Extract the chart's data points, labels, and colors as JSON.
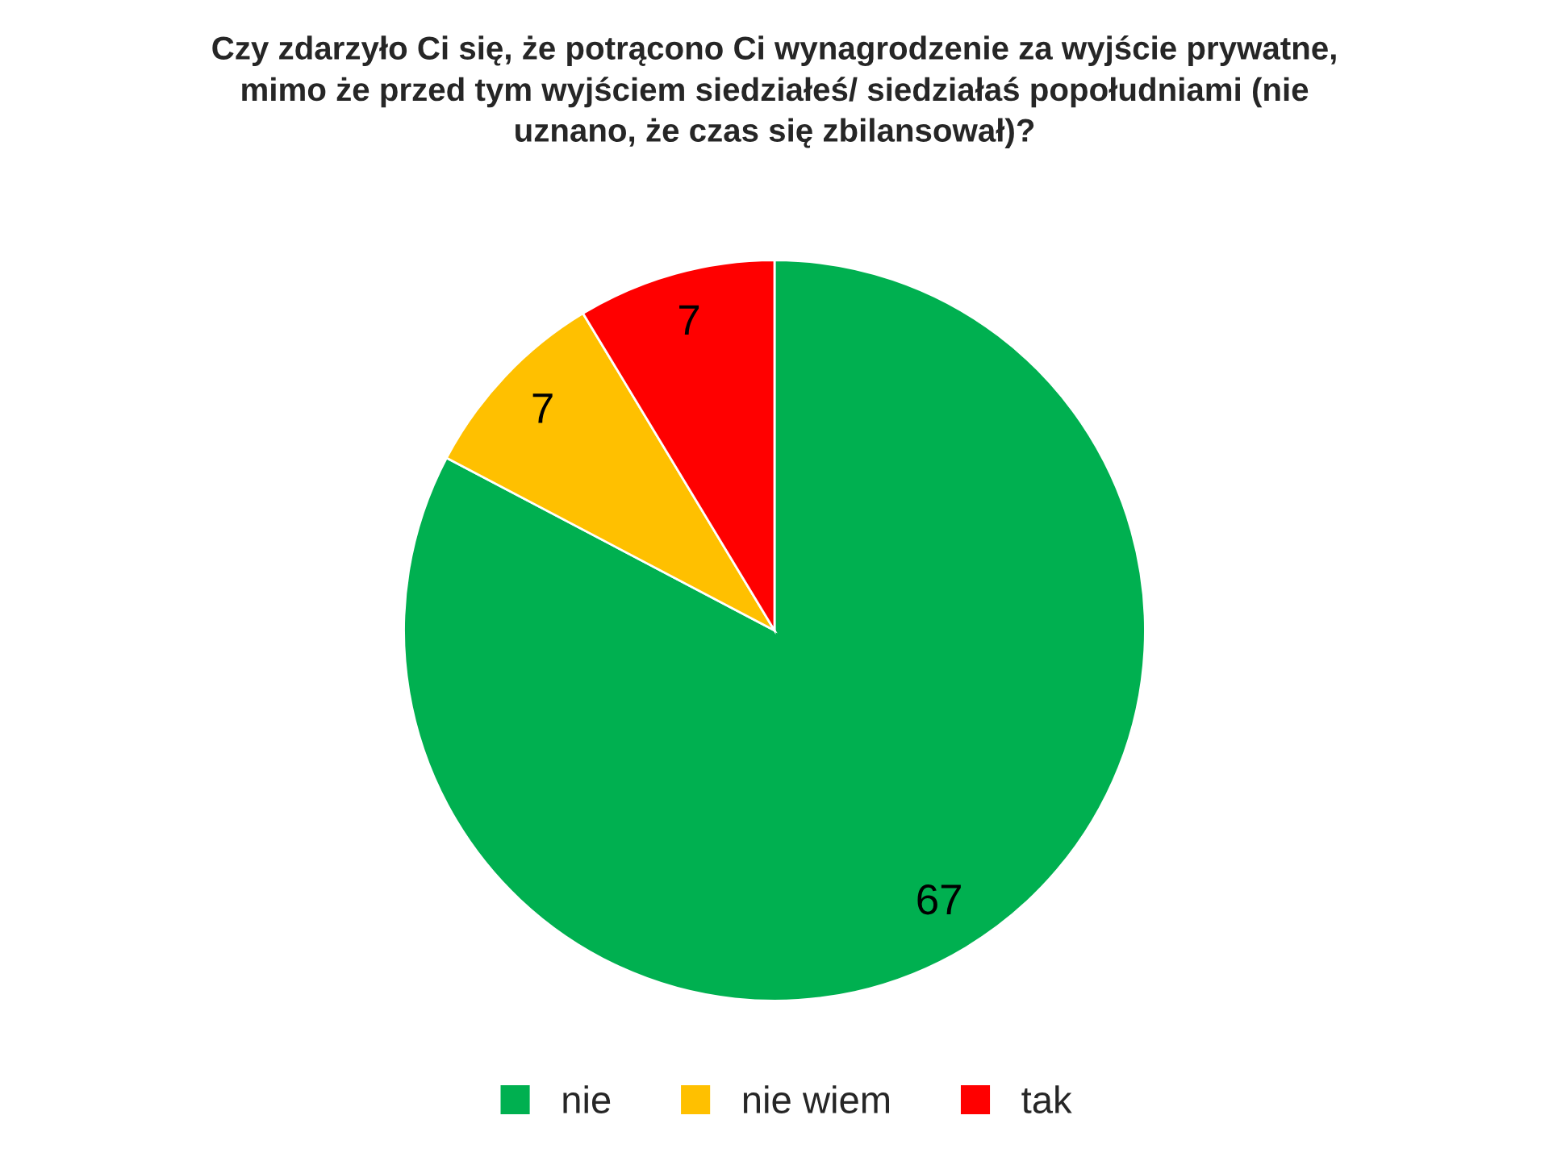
{
  "chart_data": {
    "type": "pie",
    "title": "Czy zdarzyło Ci się, że potrącono Ci wynagrodzenie za wyjście prywatne,\nmimo że przed tym wyjściem siedziałeś/ siedziałaś popołudniami (nie\nuznano, że czas się zbilansował)?",
    "categories": [
      "nie",
      "nie wiem",
      "tak"
    ],
    "values": [
      67,
      7,
      7
    ],
    "colors": [
      "#00b050",
      "#ffc000",
      "#ff0000"
    ],
    "data_labels": true,
    "legend": "bottom"
  }
}
